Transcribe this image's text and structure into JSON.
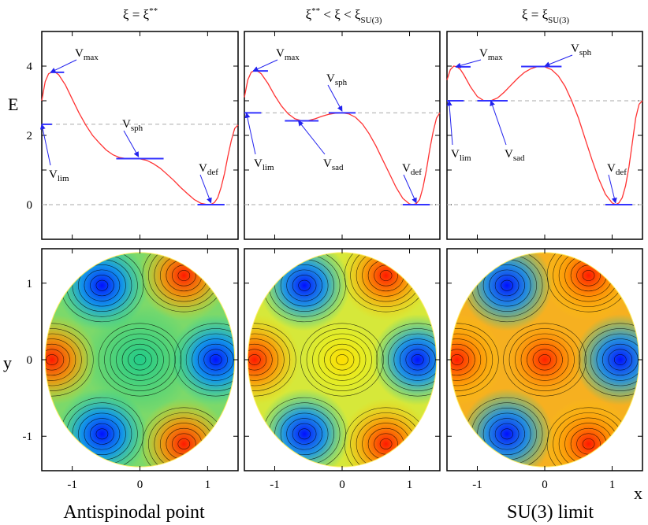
{
  "figure": {
    "column_titles": [
      {
        "main": "ξ = ξ",
        "sup": "**",
        "sub": ""
      },
      {
        "main": "ξ",
        "sup": "**",
        "mid": " < ξ < ξ",
        "sub": "SU(3)"
      },
      {
        "main": "ξ = ξ",
        "sup": "",
        "sub": "SU(3)"
      }
    ],
    "bottom_labels": [
      "Antispinodal point",
      "SU(3) limit"
    ],
    "axis_letters": {
      "E": "E",
      "x": "x",
      "y": "y"
    }
  },
  "chart_data": [
    {
      "type": "line",
      "panel": "energy-antispinodal",
      "ylabel": "E",
      "xlim": [
        -1.45,
        1.45
      ],
      "ylim": [
        -1,
        5
      ],
      "yticks": [
        0,
        2,
        4
      ],
      "xticks": [],
      "x": [
        -1.45,
        -1.4,
        -1.35,
        -1.3,
        -1.25,
        -1.2,
        -1.1,
        -1.0,
        -0.9,
        -0.8,
        -0.7,
        -0.6,
        -0.5,
        -0.4,
        -0.3,
        -0.2,
        -0.1,
        0.0,
        0.1,
        0.2,
        0.3,
        0.4,
        0.5,
        0.6,
        0.7,
        0.8,
        0.9,
        1.0,
        1.05,
        1.1,
        1.15,
        1.2,
        1.25,
        1.3,
        1.35,
        1.4,
        1.45
      ],
      "y": [
        3.0,
        3.55,
        3.78,
        3.83,
        3.82,
        3.75,
        3.45,
        3.05,
        2.65,
        2.3,
        2.0,
        1.78,
        1.58,
        1.44,
        1.36,
        1.33,
        1.33,
        1.32,
        1.28,
        1.18,
        1.05,
        0.88,
        0.7,
        0.5,
        0.32,
        0.15,
        0.04,
        0.0,
        0.01,
        0.06,
        0.2,
        0.5,
        0.9,
        1.4,
        1.85,
        2.2,
        2.3
      ],
      "levels": [
        {
          "label": "V",
          "sub": "max",
          "value": 3.82,
          "x_range": [
            -1.32,
            -1.12
          ]
        },
        {
          "label": "V",
          "sub": "lim",
          "value": 2.32,
          "x_range": [
            -1.45,
            -1.3
          ]
        },
        {
          "label": "V",
          "sub": "sph",
          "value": 1.33,
          "x_range": [
            -0.35,
            0.35
          ]
        },
        {
          "label": "V",
          "sub": "def",
          "value": 0.0,
          "x_range": [
            0.85,
            1.25
          ]
        }
      ],
      "reference_lines": [
        2.32,
        0.0
      ]
    },
    {
      "type": "line",
      "panel": "energy-intermediate",
      "xlim": [
        -1.45,
        1.45
      ],
      "ylim": [
        -1,
        5
      ],
      "x": [
        -1.45,
        -1.4,
        -1.35,
        -1.3,
        -1.25,
        -1.2,
        -1.1,
        -1.0,
        -0.9,
        -0.8,
        -0.7,
        -0.6,
        -0.5,
        -0.4,
        -0.3,
        -0.2,
        -0.1,
        0.0,
        0.1,
        0.2,
        0.3,
        0.4,
        0.5,
        0.6,
        0.7,
        0.8,
        0.9,
        1.0,
        1.05,
        1.1,
        1.15,
        1.2,
        1.25,
        1.3,
        1.35,
        1.4,
        1.45
      ],
      "y": [
        3.1,
        3.6,
        3.82,
        3.87,
        3.85,
        3.78,
        3.5,
        3.15,
        2.85,
        2.62,
        2.48,
        2.42,
        2.43,
        2.48,
        2.55,
        2.61,
        2.64,
        2.65,
        2.62,
        2.52,
        2.33,
        2.05,
        1.7,
        1.3,
        0.9,
        0.5,
        0.18,
        0.02,
        0.0,
        0.03,
        0.15,
        0.5,
        1.0,
        1.6,
        2.1,
        2.5,
        2.65
      ],
      "levels": [
        {
          "label": "V",
          "sub": "max",
          "value": 3.86,
          "x_range": [
            -1.32,
            -1.1
          ]
        },
        {
          "label": "V",
          "sub": "lim",
          "value": 2.65,
          "x_range": [
            -1.45,
            -1.2
          ]
        },
        {
          "label": "V",
          "sub": "sad",
          "value": 2.42,
          "x_range": [
            -0.85,
            -0.35
          ]
        },
        {
          "label": "V",
          "sub": "sph",
          "value": 2.65,
          "x_range": [
            -0.2,
            0.2
          ]
        },
        {
          "label": "V",
          "sub": "def",
          "value": 0.0,
          "x_range": [
            0.9,
            1.3
          ]
        }
      ],
      "reference_lines": [
        2.65,
        0.0
      ]
    },
    {
      "type": "line",
      "panel": "energy-su3",
      "xlim": [
        -1.45,
        1.45
      ],
      "ylim": [
        -1,
        5
      ],
      "x": [
        -1.45,
        -1.4,
        -1.35,
        -1.3,
        -1.25,
        -1.2,
        -1.1,
        -1.0,
        -0.9,
        -0.8,
        -0.7,
        -0.6,
        -0.5,
        -0.4,
        -0.3,
        -0.2,
        -0.1,
        0.0,
        0.1,
        0.2,
        0.3,
        0.4,
        0.5,
        0.6,
        0.7,
        0.8,
        0.9,
        1.0,
        1.05,
        1.1,
        1.15,
        1.2,
        1.25,
        1.3,
        1.35,
        1.4,
        1.45
      ],
      "y": [
        3.6,
        3.9,
        4.0,
        3.98,
        3.9,
        3.75,
        3.4,
        3.12,
        3.0,
        3.0,
        3.08,
        3.25,
        3.45,
        3.65,
        3.82,
        3.93,
        3.99,
        3.98,
        3.9,
        3.72,
        3.42,
        3.0,
        2.5,
        1.9,
        1.3,
        0.75,
        0.3,
        0.05,
        0.0,
        0.05,
        0.2,
        0.55,
        1.1,
        1.8,
        2.5,
        2.9,
        3.0
      ],
      "levels": [
        {
          "label": "V",
          "sub": "max",
          "value": 3.98,
          "x_range": [
            -1.32,
            -1.1
          ]
        },
        {
          "label": "V",
          "sub": "lim",
          "value": 3.0,
          "x_range": [
            -1.45,
            -1.2
          ]
        },
        {
          "label": "V",
          "sub": "sad",
          "value": 3.0,
          "x_range": [
            -1.0,
            -0.55
          ]
        },
        {
          "label": "V",
          "sub": "sph",
          "value": 3.99,
          "x_range": [
            -0.35,
            0.25
          ]
        },
        {
          "label": "V",
          "sub": "def",
          "value": 0.0,
          "x_range": [
            0.9,
            1.3
          ]
        }
      ],
      "reference_lines": [
        3.0,
        0.0
      ]
    },
    {
      "type": "heatmap",
      "panel": "contour-antispinodal",
      "xlabel": "",
      "ylabel": "y",
      "xlim": [
        -1.45,
        1.45
      ],
      "ylim": [
        -1.45,
        1.45
      ],
      "xticks": [
        -1,
        0,
        1
      ],
      "yticks": [
        -1,
        0,
        1
      ],
      "extrema": [
        {
          "kind": "max",
          "x": -1.3,
          "y": 0.0
        },
        {
          "kind": "max",
          "x": 0.65,
          "y": 1.1
        },
        {
          "kind": "max",
          "x": 0.65,
          "y": -1.1
        },
        {
          "kind": "min",
          "x": 1.12,
          "y": 0.0
        },
        {
          "kind": "min",
          "x": -0.56,
          "y": 0.97
        },
        {
          "kind": "min",
          "x": -0.56,
          "y": -0.97
        },
        {
          "kind": "center",
          "x": 0.0,
          "y": 0.0
        }
      ]
    },
    {
      "type": "heatmap",
      "panel": "contour-intermediate",
      "xlim": [
        -1.45,
        1.45
      ],
      "ylim": [
        -1.45,
        1.45
      ],
      "xticks": [
        -1,
        0,
        1
      ],
      "extrema": [
        {
          "kind": "max",
          "x": -1.3,
          "y": 0.0
        },
        {
          "kind": "max",
          "x": 0.65,
          "y": 1.1
        },
        {
          "kind": "max",
          "x": 0.65,
          "y": -1.1
        },
        {
          "kind": "min",
          "x": 1.12,
          "y": 0.0
        },
        {
          "kind": "min",
          "x": -0.56,
          "y": 0.97
        },
        {
          "kind": "min",
          "x": -0.56,
          "y": -0.97
        },
        {
          "kind": "center",
          "x": 0.0,
          "y": 0.0
        }
      ]
    },
    {
      "type": "heatmap",
      "panel": "contour-su3",
      "xlabel": "x",
      "xlim": [
        -1.45,
        1.45
      ],
      "ylim": [
        -1.45,
        1.45
      ],
      "xticks": [
        -1,
        0,
        1
      ],
      "extrema": [
        {
          "kind": "max",
          "x": -1.3,
          "y": 0.0
        },
        {
          "kind": "max",
          "x": 0.65,
          "y": 1.1
        },
        {
          "kind": "max",
          "x": 0.65,
          "y": -1.1
        },
        {
          "kind": "min",
          "x": 1.12,
          "y": 0.0
        },
        {
          "kind": "min",
          "x": -0.56,
          "y": 0.97
        },
        {
          "kind": "min",
          "x": -0.56,
          "y": -0.97
        },
        {
          "kind": "center",
          "x": 0.0,
          "y": 0.0
        }
      ]
    }
  ],
  "colors": {
    "curve": "#ff3333",
    "level": "#3333ff",
    "arrow": "#2222ee",
    "reference": "#aaaaaa",
    "frame": "#000000",
    "contour_min": "#0000ff",
    "contour_mid": "#00cc66",
    "contour_high": "#ffff00",
    "contour_max": "#ff2200"
  }
}
